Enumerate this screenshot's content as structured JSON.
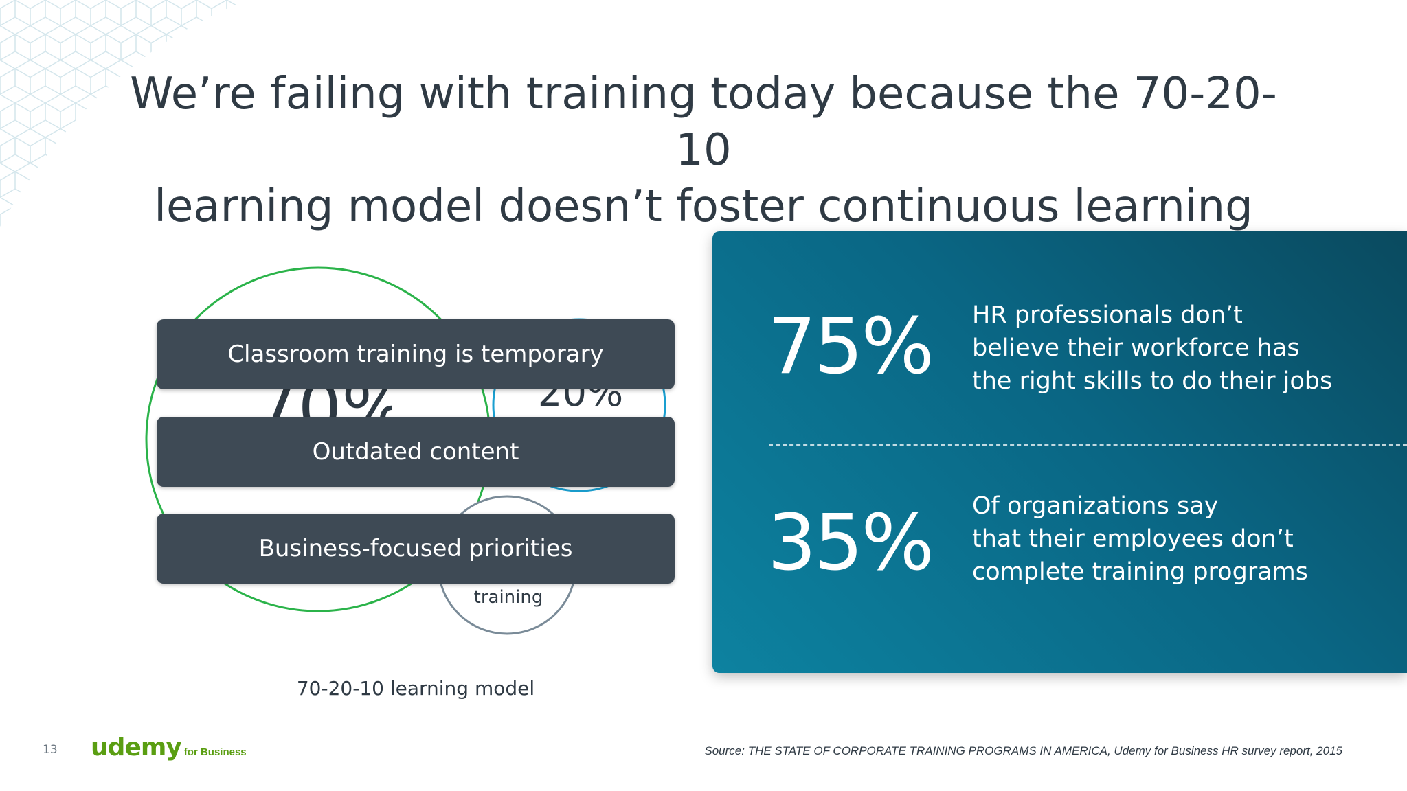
{
  "slide": {
    "title_line1": "We’re failing with training today because the 70-20-10",
    "title_line2": "learning model doesn’t foster continuous learning"
  },
  "diagram": {
    "circles": [
      {
        "label": "70%",
        "color": "#2bb34a"
      },
      {
        "label": "20%",
        "color": "#1a9fd0"
      },
      {
        "label": "training",
        "color": "#7a8b98"
      }
    ],
    "bars": [
      {
        "label": "Classroom training is temporary"
      },
      {
        "label": "Outdated content"
      },
      {
        "label": "Business-focused priorities"
      }
    ],
    "caption": "70-20-10 learning model"
  },
  "stats": [
    {
      "value": "75%",
      "lines": [
        "HR professionals don’t",
        "believe their workforce has",
        "the right skills to do their jobs"
      ]
    },
    {
      "value": "35%",
      "lines": [
        "Of organizations say",
        "that their employees don’t",
        "complete training programs"
      ]
    }
  ],
  "footer": {
    "page_number": "13",
    "logo_main": "udemy",
    "logo_sub": "for Business",
    "source": "Source: THE STATE OF CORPORATE TRAINING PROGRAMS IN AMERICA, Udemy for Business HR survey report, 2015"
  },
  "colors": {
    "panel": "#0a6684",
    "bar": "#3e4a55",
    "brand_green": "#5a9e12"
  }
}
